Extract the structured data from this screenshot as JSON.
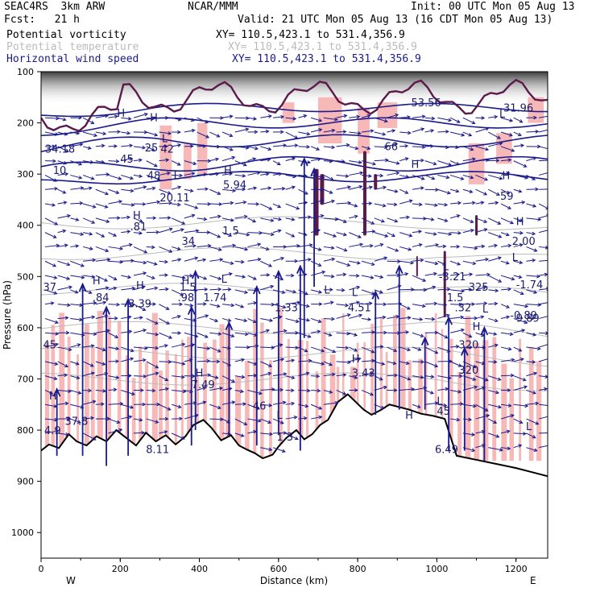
{
  "header": {
    "run": "SEAC4RS  3km ARW",
    "org": "NCAR/MMM",
    "init": "Init: 00 UTC Mon 05 Aug 13",
    "fcst": "Fcst:   21 h",
    "valid": "Valid: 21 UTC Mon 05 Aug 13 (16 CDT Mon 05 Aug 13)",
    "fields": [
      {
        "name": "Potential vorticity",
        "xy": "XY= 110.5,423.1 to 531.4,356.9",
        "color": "#000000"
      },
      {
        "name": "Potential temperature",
        "xy": "XY= 110.5,423.1 to 531.4,356.9",
        "color": "#bbbbbb"
      },
      {
        "name": "Horizontal wind speed",
        "xy": "XY= 110.5,423.1 to 531.4,356.9",
        "color": "#1a1a8c"
      }
    ]
  },
  "colors": {
    "pv": "#5a1a4a",
    "theta": "#bbbbbb",
    "wind": "#1a1a8c",
    "shade": "#f7b8b8",
    "terrain": "#000000"
  },
  "chart_data": {
    "type": "cross-section",
    "xlabel": "Distance (km)",
    "ylabel": "Pressure (hPa)",
    "xlim": [
      0,
      1280
    ],
    "ylim": [
      1050,
      100
    ],
    "xticks": [
      0,
      200,
      400,
      600,
      800,
      1000,
      1200
    ],
    "yticks": [
      100,
      200,
      300,
      400,
      500,
      600,
      700,
      800,
      900,
      1000
    ],
    "left_end_label": "W",
    "right_end_label": "E",
    "terrain_surface": [
      [
        0,
        840
      ],
      [
        20,
        828
      ],
      [
        45,
        835
      ],
      [
        70,
        808
      ],
      [
        90,
        822
      ],
      [
        115,
        830
      ],
      [
        140,
        812
      ],
      [
        165,
        822
      ],
      [
        190,
        800
      ],
      [
        215,
        815
      ],
      [
        240,
        830
      ],
      [
        265,
        805
      ],
      [
        290,
        822
      ],
      [
        315,
        810
      ],
      [
        340,
        828
      ],
      [
        365,
        812
      ],
      [
        385,
        790
      ],
      [
        410,
        780
      ],
      [
        430,
        795
      ],
      [
        455,
        820
      ],
      [
        480,
        810
      ],
      [
        500,
        830
      ],
      [
        520,
        838
      ],
      [
        540,
        845
      ],
      [
        560,
        855
      ],
      [
        585,
        848
      ],
      [
        600,
        832
      ],
      [
        620,
        815
      ],
      [
        645,
        800
      ],
      [
        665,
        818
      ],
      [
        685,
        808
      ],
      [
        705,
        790
      ],
      [
        725,
        780
      ],
      [
        750,
        745
      ],
      [
        775,
        730
      ],
      [
        795,
        745
      ],
      [
        815,
        760
      ],
      [
        835,
        770
      ],
      [
        860,
        760
      ],
      [
        880,
        750
      ],
      [
        905,
        755
      ],
      [
        930,
        760
      ],
      [
        960,
        768
      ],
      [
        990,
        772
      ],
      [
        1020,
        778
      ],
      [
        1050,
        850
      ],
      [
        1100,
        858
      ],
      [
        1150,
        866
      ],
      [
        1200,
        874
      ],
      [
        1240,
        882
      ],
      [
        1280,
        890
      ]
    ],
    "hl_labels": [
      {
        "text": "H",
        "x": 192,
        "p": 188
      },
      {
        "text": "L",
        "x": 1158,
        "p": 190
      },
      {
        "text": "H",
        "x": 275,
        "p": 197
      },
      {
        "text": "L",
        "x": 305,
        "p": 238
      },
      {
        "text": "H",
        "x": 935,
        "p": 288
      },
      {
        "text": "H",
        "x": 462,
        "p": 300
      },
      {
        "text": "L",
        "x": 335,
        "p": 310
      },
      {
        "text": "H",
        "x": 1165,
        "p": 310
      },
      {
        "text": "H",
        "x": 232,
        "p": 388
      },
      {
        "text": "H",
        "x": 1200,
        "p": 400
      },
      {
        "text": "L",
        "x": 1190,
        "p": 470
      },
      {
        "text": "L",
        "x": 1015,
        "p": 488
      },
      {
        "text": "H",
        "x": 130,
        "p": 515
      },
      {
        "text": "H",
        "x": 240,
        "p": 525
      },
      {
        "text": "H",
        "x": 355,
        "p": 515
      },
      {
        "text": "L",
        "x": 455,
        "p": 512
      },
      {
        "text": "L",
        "x": 715,
        "p": 533
      },
      {
        "text": "L",
        "x": 785,
        "p": 538
      },
      {
        "text": "L",
        "x": 1115,
        "p": 570
      },
      {
        "text": "H",
        "x": 1090,
        "p": 605
      },
      {
        "text": "H",
        "x": 785,
        "p": 668
      },
      {
        "text": "H",
        "x": 390,
        "p": 695
      },
      {
        "text": "H",
        "x": 20,
        "p": 740
      },
      {
        "text": "L",
        "x": 1000,
        "p": 750
      },
      {
        "text": "L",
        "x": 595,
        "p": 778
      },
      {
        "text": "H",
        "x": 920,
        "p": 778
      },
      {
        "text": "L",
        "x": 1225,
        "p": 800
      }
    ],
    "value_labels": [
      {
        "text": "53.56",
        "x": 935,
        "p": 168
      },
      {
        "text": "31.96",
        "x": 1168,
        "p": 178
      },
      {
        "text": "66",
        "x": 868,
        "p": 253
      },
      {
        "text": "34.18",
        "x": 10,
        "p": 258
      },
      {
        "text": "25",
        "x": 262,
        "p": 256
      },
      {
        "text": "42",
        "x": 302,
        "p": 258
      },
      {
        "text": "45",
        "x": 200,
        "p": 278
      },
      {
        "text": "10",
        "x": 30,
        "p": 300
      },
      {
        "text": "48",
        "x": 268,
        "p": 310
      },
      {
        "text": "5.94",
        "x": 460,
        "p": 328
      },
      {
        "text": "20.11",
        "x": 300,
        "p": 353
      },
      {
        "text": "59",
        "x": 1160,
        "p": 350
      },
      {
        "text": ".81",
        "x": 225,
        "p": 410
      },
      {
        "text": "1.5",
        "x": 458,
        "p": 418
      },
      {
        "text": "34",
        "x": 355,
        "p": 438
      },
      {
        "text": "2.00",
        "x": 1190,
        "p": 438
      },
      {
        "text": "-3.21",
        "x": 1005,
        "p": 507
      },
      {
        "text": "-1.74",
        "x": 1200,
        "p": 523
      },
      {
        "text": "325",
        "x": 1080,
        "p": 528
      },
      {
        "text": "37",
        "x": 5,
        "p": 528
      },
      {
        "text": "1.5",
        "x": 350,
        "p": 528
      },
      {
        "text": "1.5",
        "x": 1025,
        "p": 548
      },
      {
        "text": ".84",
        "x": 130,
        "p": 548
      },
      {
        "text": "3.39",
        "x": 220,
        "p": 560
      },
      {
        "text": ".98",
        "x": 345,
        "p": 548
      },
      {
        "text": "1.74",
        "x": 410,
        "p": 548
      },
      {
        "text": "1.33",
        "x": 590,
        "p": 568
      },
      {
        "text": ".32",
        "x": 1045,
        "p": 568
      },
      {
        "text": "4.51",
        "x": 775,
        "p": 568
      },
      {
        "text": "-0.89",
        "x": 1185,
        "p": 583
      },
      {
        "text": "9.89",
        "x": 1200,
        "p": 588
      },
      {
        "text": "45",
        "x": 5,
        "p": 640
      },
      {
        "text": "320",
        "x": 1055,
        "p": 640
      },
      {
        "text": "320",
        "x": 1055,
        "p": 690
      },
      {
        "text": "3.43",
        "x": 785,
        "p": 695
      },
      {
        "text": "7.49",
        "x": 380,
        "p": 718
      },
      {
        "text": "46",
        "x": 535,
        "p": 760
      },
      {
        "text": "45",
        "x": 1000,
        "p": 770
      },
      {
        "text": "37.8",
        "x": 60,
        "p": 790
      },
      {
        "text": "1.3",
        "x": 595,
        "p": 820
      },
      {
        "text": "4.9",
        "x": 8,
        "p": 808
      },
      {
        "text": "8.11",
        "x": 265,
        "p": 845
      },
      {
        "text": "6.49",
        "x": 995,
        "p": 845
      }
    ],
    "updraft_arrows": [
      {
        "x": 40,
        "p_base": 850,
        "p_top": 720
      },
      {
        "x": 105,
        "p_base": 850,
        "p_top": 515
      },
      {
        "x": 165,
        "p_base": 870,
        "p_top": 560
      },
      {
        "x": 220,
        "p_base": 850,
        "p_top": 545
      },
      {
        "x": 380,
        "p_base": 830,
        "p_top": 560
      },
      {
        "x": 390,
        "p_base": 800,
        "p_top": 490
      },
      {
        "x": 475,
        "p_base": 810,
        "p_top": 590
      },
      {
        "x": 545,
        "p_base": 830,
        "p_top": 520
      },
      {
        "x": 600,
        "p_base": 810,
        "p_top": 490
      },
      {
        "x": 655,
        "p_base": 840,
        "p_top": 480
      },
      {
        "x": 665,
        "p_base": 620,
        "p_top": 270
      },
      {
        "x": 690,
        "p_base": 520,
        "p_top": 290
      },
      {
        "x": 845,
        "p_base": 770,
        "p_top": 530
      },
      {
        "x": 905,
        "p_base": 760,
        "p_top": 480
      },
      {
        "x": 970,
        "p_base": 760,
        "p_top": 620
      },
      {
        "x": 1030,
        "p_base": 840,
        "p_top": 580
      },
      {
        "x": 1070,
        "p_base": 840,
        "p_top": 640
      },
      {
        "x": 1120,
        "p_base": 860,
        "p_top": 600
      }
    ]
  }
}
